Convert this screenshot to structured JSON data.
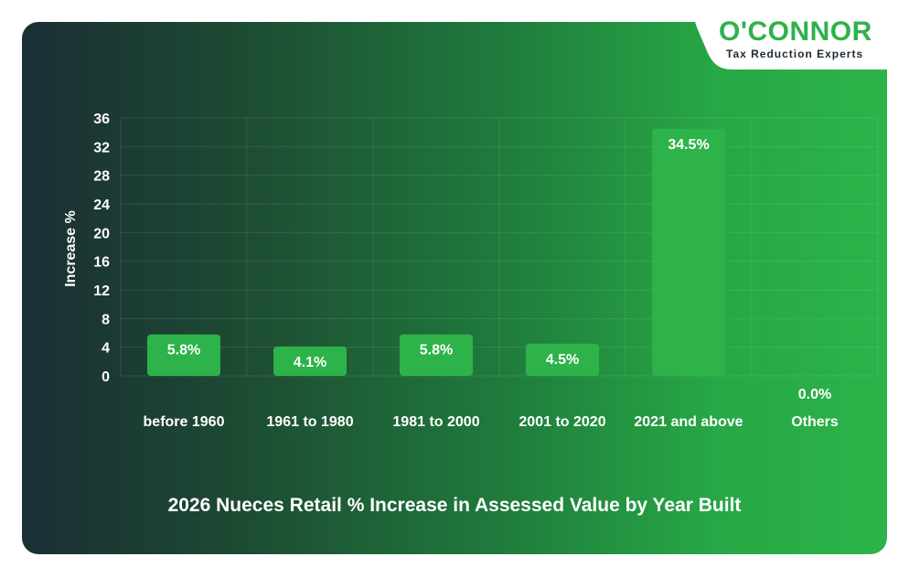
{
  "brand": {
    "name": "O'CONNOR",
    "tagline": "Tax Reduction Experts",
    "color": "#2eb24a"
  },
  "chart_data": {
    "type": "bar",
    "title": "2026 Nueces Retail % Increase in Assessed Value by Year Built",
    "ylabel": "Increase %",
    "xlabel": "",
    "categories": [
      "before 1960",
      "1961 to 1980",
      "1981 to 2000",
      "2001 to 2020",
      "2021 and above",
      "Others"
    ],
    "values": [
      5.8,
      4.1,
      5.8,
      4.5,
      34.5,
      0.0
    ],
    "labels": [
      "5.8%",
      "4.1%",
      "5.8%",
      "4.5%",
      "34.5%",
      "0.0%"
    ],
    "ylim": [
      0,
      36
    ],
    "yticks": [
      0,
      4,
      8,
      12,
      16,
      20,
      24,
      28,
      32,
      36
    ],
    "grid": true,
    "bar_color": "#2eb24a",
    "legend": "none"
  }
}
